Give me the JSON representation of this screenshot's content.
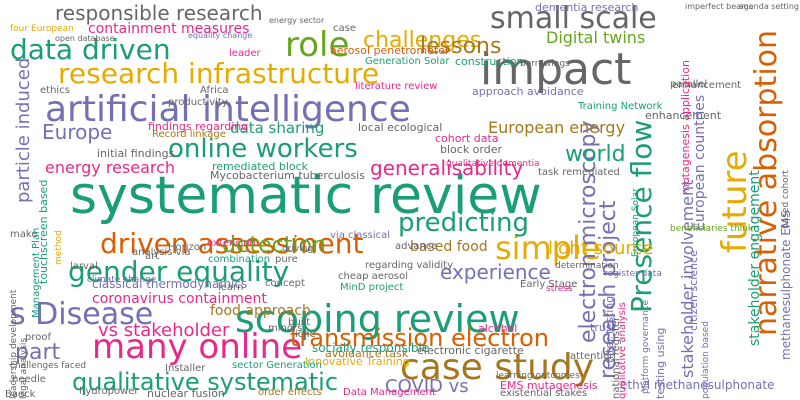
{
  "palette": {
    "teal": "#1b9e77",
    "orange": "#d95f02",
    "purple": "#7570b3",
    "pink": "#e7298a",
    "green": "#66a61e",
    "gold": "#e6ab02",
    "brown": "#a6761d",
    "gray": "#666666"
  },
  "words": [
    {
      "text": "systematic review",
      "color": "teal"
    },
    {
      "text": "artificial intelligence",
      "color": "purple"
    },
    {
      "text": "scoping review",
      "color": "teal"
    },
    {
      "text": "impact",
      "color": "gray"
    },
    {
      "text": "research infrastructure",
      "color": "gold"
    },
    {
      "text": "driven assessment",
      "color": "orange"
    },
    {
      "text": "gender equality",
      "color": "teal"
    },
    {
      "text": "many online",
      "color": "pink"
    },
    {
      "text": "case study",
      "color": "brown"
    },
    {
      "text": "transmission electron",
      "color": "orange"
    },
    {
      "text": "online workers",
      "color": "teal"
    },
    {
      "text": "data driven",
      "color": "teal"
    },
    {
      "text": "small scale",
      "color": "gray"
    },
    {
      "text": "responsible research",
      "color": "gray"
    },
    {
      "text": "role",
      "color": "green"
    },
    {
      "text": "challenges",
      "color": "gold"
    },
    {
      "text": "qualitative systematic",
      "color": "teal"
    },
    {
      "text": "Presence flow",
      "color": "teal"
    },
    {
      "text": "future",
      "color": "gold"
    },
    {
      "text": "narrative absorption",
      "color": "orange"
    },
    {
      "text": "s Disease",
      "color": "purple"
    },
    {
      "text": "simple",
      "color": "gold"
    },
    {
      "text": "detection",
      "color": "green"
    },
    {
      "text": "predicting",
      "color": "teal"
    },
    {
      "text": "particle induced",
      "color": "purple"
    },
    {
      "text": "research project",
      "color": "purple"
    },
    {
      "text": "electron microscopy",
      "color": "purple"
    },
    {
      "text": "lessons",
      "color": "brown"
    },
    {
      "text": "generalisability",
      "color": "pink"
    },
    {
      "text": "Europe",
      "color": "purple"
    },
    {
      "text": "world",
      "color": "teal"
    },
    {
      "text": "part",
      "color": "purple"
    },
    {
      "text": "COVID vs",
      "color": "purple"
    },
    {
      "text": "experience",
      "color": "purple"
    },
    {
      "text": "vs stakeholder",
      "color": "pink"
    },
    {
      "text": "light source",
      "color": "gold"
    },
    {
      "text": "energy research",
      "color": "pink"
    },
    {
      "text": "Digital twins",
      "color": "green"
    },
    {
      "text": "data sharing",
      "color": "teal"
    },
    {
      "text": "European energy",
      "color": "brown"
    },
    {
      "text": "stakeholder involvement",
      "color": "purple"
    },
    {
      "text": "containment measures",
      "color": "pink"
    },
    {
      "text": "coronavirus containment",
      "color": "pink"
    },
    {
      "text": "food approach",
      "color": "brown"
    },
    {
      "text": "based food",
      "color": "brown"
    },
    {
      "text": "remediated block",
      "color": "teal"
    },
    {
      "text": "classical thermodynamics",
      "color": "purple"
    },
    {
      "text": "socially responsible",
      "color": "teal"
    },
    {
      "text": "electronic cigarette",
      "color": "gray"
    },
    {
      "text": "dementia research",
      "color": "purple"
    },
    {
      "text": "stakeholder engagement",
      "color": "teal"
    },
    {
      "text": "European countries",
      "color": "purple"
    },
    {
      "text": "aerosol penetrometer",
      "color": "orange"
    },
    {
      "text": "approach avoidance",
      "color": "purple"
    },
    {
      "text": "findings regarding",
      "color": "pink"
    },
    {
      "text": "initial findings",
      "color": "gray"
    },
    {
      "text": "Record linkage",
      "color": "brown"
    },
    {
      "text": "local ecological",
      "color": "gray"
    },
    {
      "text": "cohort data",
      "color": "pink"
    },
    {
      "text": "block order",
      "color": "gray"
    },
    {
      "text": "task remediated",
      "color": "gray"
    },
    {
      "text": "ethyl methanesulphonate",
      "color": "purple"
    },
    {
      "text": "methanesulphonate EMS",
      "color": "purple"
    },
    {
      "text": "EMS mutagenesis",
      "color": "pink"
    },
    {
      "text": "avoidance task",
      "color": "brown"
    },
    {
      "text": "Innovative Training",
      "color": "gold"
    },
    {
      "text": "Training Network",
      "color": "teal"
    },
    {
      "text": "Generation Solar",
      "color": "teal"
    },
    {
      "text": "construction",
      "color": "teal"
    },
    {
      "text": "enhancement",
      "color": "gray"
    },
    {
      "text": "parallel",
      "color": "gray"
    },
    {
      "text": "existential stakes",
      "color": "gray"
    },
    {
      "text": "nuclear fusion",
      "color": "gray"
    },
    {
      "text": "hydropower",
      "color": "gray"
    },
    {
      "text": "sector Generation",
      "color": "teal"
    },
    {
      "text": "order effects",
      "color": "brown"
    },
    {
      "text": "Data Management",
      "color": "pink"
    },
    {
      "text": "regarding validity",
      "color": "gray"
    },
    {
      "text": "MinD project",
      "color": "teal"
    },
    {
      "text": "cheap aerosol",
      "color": "gray"
    },
    {
      "text": "via classical",
      "color": "purple"
    },
    {
      "text": "Early Stage",
      "color": "gray"
    },
    {
      "text": "analysis via",
      "color": "gray"
    },
    {
      "text": "combination",
      "color": "teal"
    },
    {
      "text": "extension",
      "color": "pink"
    },
    {
      "text": "Horizon",
      "color": "gray"
    },
    {
      "text": "Installer",
      "color": "gray"
    },
    {
      "text": "learn",
      "color": "gray"
    },
    {
      "text": "concept",
      "color": "gray"
    },
    {
      "text": "productivity",
      "color": "gray"
    },
    {
      "text": "Africa",
      "color": "gray"
    },
    {
      "text": "ethics",
      "color": "gray"
    },
    {
      "text": "leader",
      "color": "pink"
    },
    {
      "text": "enhancement",
      "color": "gray"
    },
    {
      "text": "make",
      "color": "gray"
    },
    {
      "text": "alcohol",
      "color": "pink"
    },
    {
      "text": "trust",
      "color": "purple"
    },
    {
      "text": "attention",
      "color": "gray"
    },
    {
      "text": "built",
      "color": "gray"
    },
    {
      "text": "minors",
      "color": "gray"
    },
    {
      "text": "iche",
      "color": "gray"
    },
    {
      "text": "Baeck",
      "color": "gray"
    },
    {
      "text": "needle",
      "color": "gray"
    },
    {
      "text": "proof",
      "color": "gray"
    },
    {
      "text": "challenges faced",
      "color": "gray"
    },
    {
      "text": "case",
      "color": "gray"
    },
    {
      "text": "four European",
      "color": "gold"
    },
    {
      "text": "open database",
      "color": "gray"
    },
    {
      "text": "borrowings",
      "color": "gray"
    },
    {
      "text": "equality change",
      "color": "purple"
    },
    {
      "text": "energy sector",
      "color": "gray"
    },
    {
      "text": "imperfect beams",
      "color": "gray"
    },
    {
      "text": "agenda setting",
      "color": "gray"
    },
    {
      "text": "larval",
      "color": "gray"
    },
    {
      "text": "art",
      "color": "gray"
    },
    {
      "text": "pure",
      "color": "gray"
    },
    {
      "text": "driving",
      "color": "gray"
    },
    {
      "text": "touchscreen based",
      "color": "teal"
    },
    {
      "text": "filter testing",
      "color": "purple"
    },
    {
      "text": "testing using",
      "color": "purple"
    },
    {
      "text": "register data",
      "color": "purple"
    },
    {
      "text": "stress",
      "color": "pink"
    },
    {
      "text": "determination",
      "color": "gray"
    },
    {
      "text": "advance",
      "color": "gray"
    },
    {
      "text": "method",
      "color": "gold"
    },
    {
      "text": "Management Plan",
      "color": "teal"
    },
    {
      "text": "climate change",
      "color": "purple"
    },
    {
      "text": "citizen science",
      "color": "purple"
    },
    {
      "text": "qualitative analysis",
      "color": "pink"
    },
    {
      "text": "mutagenesis application",
      "color": "pink"
    },
    {
      "text": "population based",
      "color": "purple"
    },
    {
      "text": "national register",
      "color": "gray"
    },
    {
      "text": "platform governance",
      "color": "purple"
    },
    {
      "text": "qualitative dementia",
      "color": "pink"
    },
    {
      "text": "Mycobacterium tuberculosis",
      "color": "gray"
    },
    {
      "text": "literature review",
      "color": "pink"
    },
    {
      "text": "legal analysis",
      "color": "gray"
    },
    {
      "text": "leadership development",
      "color": "gray"
    },
    {
      "text": "learning outcomes",
      "color": "gray"
    },
    {
      "text": "based cohort",
      "color": "gray"
    },
    {
      "text": "beneficiaries think",
      "color": "green"
    },
    {
      "text": "European Solar",
      "color": "teal"
    },
    {
      "text": "applied",
      "color": "gray"
    }
  ]
}
